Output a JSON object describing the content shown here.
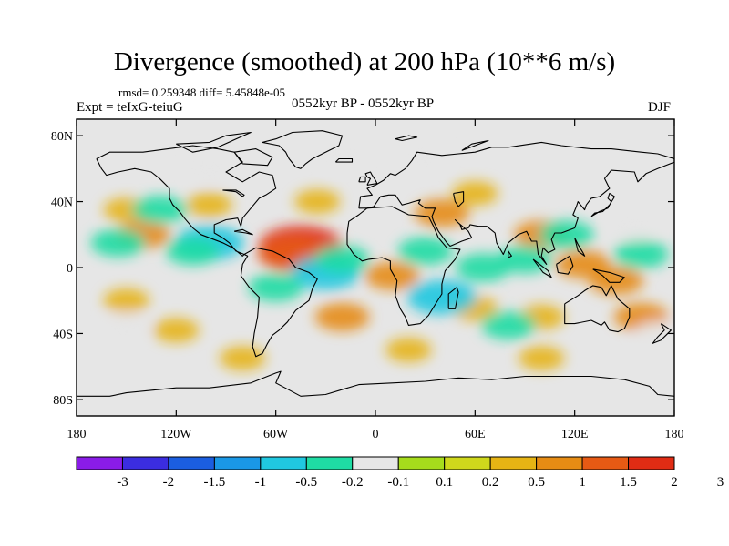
{
  "title": "Divergence (smoothed) at 200 hPa (10**6 m/s)",
  "stats": "rmsd= 0.259348 diff= 5.45848e-05",
  "experiment": "Expt = teIxG-teiuG",
  "period": "0552kyr BP - 0552kyr BP",
  "season": "DJF",
  "axes": {
    "lat_ticks": [
      {
        "value": 80,
        "label": "80N"
      },
      {
        "value": 40,
        "label": "40N"
      },
      {
        "value": 0,
        "label": "0"
      },
      {
        "value": -40,
        "label": "40S"
      },
      {
        "value": -80,
        "label": "80S"
      }
    ],
    "lon_ticks": [
      {
        "value": -180,
        "label": "180"
      },
      {
        "value": -120,
        "label": "120W"
      },
      {
        "value": -60,
        "label": "60W"
      },
      {
        "value": 0,
        "label": "0"
      },
      {
        "value": 60,
        "label": "60E"
      },
      {
        "value": 120,
        "label": "120E"
      },
      {
        "value": 180,
        "label": "180"
      }
    ]
  },
  "colorbar": {
    "colors": [
      "#8a1ce8",
      "#3b2de0",
      "#1b5ee0",
      "#1a98e6",
      "#20c8e0",
      "#1fdca4",
      "#e6e6e6",
      "#a6dc1c",
      "#cfd81c",
      "#e6b414",
      "#e68c14",
      "#e65a14",
      "#e02c14"
    ],
    "labels": [
      "-3",
      "-2",
      "-1.5",
      "-1",
      "-0.5",
      "-0.2",
      "-0.1",
      "0.1",
      "0.2",
      "0.5",
      "1",
      "1.5",
      "2",
      "3"
    ]
  },
  "chart_data": {
    "type": "heatmap",
    "variable": "Divergence (smoothed) at 200 hPa",
    "units": "10**6 m/s",
    "levels": [
      -3,
      -2,
      -1.5,
      -1,
      -0.5,
      -0.2,
      -0.1,
      0.1,
      0.2,
      0.5,
      1,
      1.5,
      2,
      3
    ],
    "lon_range": [
      -180,
      180
    ],
    "lat_range": [
      -90,
      90
    ],
    "anomalies": [
      {
        "lon": -45,
        "lat": 13,
        "value": 1.5
      },
      {
        "lon": -50,
        "lat": 8,
        "value": 1
      },
      {
        "lon": -140,
        "lat": 20,
        "value": 0.5
      },
      {
        "lon": -150,
        "lat": 35,
        "value": 0.2
      },
      {
        "lon": -100,
        "lat": 38,
        "value": 0.2
      },
      {
        "lon": -35,
        "lat": 40,
        "value": 0.2
      },
      {
        "lon": 40,
        "lat": 33,
        "value": 0.5
      },
      {
        "lon": 60,
        "lat": 45,
        "value": 0.2
      },
      {
        "lon": 100,
        "lat": 20,
        "value": 0.5
      },
      {
        "lon": 125,
        "lat": 2,
        "value": 0.5
      },
      {
        "lon": 145,
        "lat": -8,
        "value": 0.5
      },
      {
        "lon": 10,
        "lat": -5,
        "value": 0.5
      },
      {
        "lon": -150,
        "lat": -20,
        "value": 0.2
      },
      {
        "lon": -120,
        "lat": -38,
        "value": 0.2
      },
      {
        "lon": -20,
        "lat": -30,
        "value": 0.5
      },
      {
        "lon": 60,
        "lat": -25,
        "value": 0.2
      },
      {
        "lon": 100,
        "lat": -30,
        "value": 0.2
      },
      {
        "lon": 160,
        "lat": -30,
        "value": 0.5
      },
      {
        "lon": -80,
        "lat": -55,
        "value": 0.2
      },
      {
        "lon": 20,
        "lat": -50,
        "value": 0.2
      },
      {
        "lon": 100,
        "lat": -55,
        "value": 0.2
      },
      {
        "lon": -130,
        "lat": 35,
        "value": -0.5
      },
      {
        "lon": -155,
        "lat": 15,
        "value": -0.5
      },
      {
        "lon": -100,
        "lat": 15,
        "value": -1
      },
      {
        "lon": -110,
        "lat": 10,
        "value": -0.5
      },
      {
        "lon": -30,
        "lat": -3,
        "value": -1
      },
      {
        "lon": -20,
        "lat": 5,
        "value": -0.5
      },
      {
        "lon": -60,
        "lat": -12,
        "value": -0.5
      },
      {
        "lon": 30,
        "lat": 10,
        "value": -0.5
      },
      {
        "lon": 65,
        "lat": 0,
        "value": -0.5
      },
      {
        "lon": 40,
        "lat": -18,
        "value": -1
      },
      {
        "lon": 90,
        "lat": 5,
        "value": -0.5
      },
      {
        "lon": 115,
        "lat": 20,
        "value": -0.5
      },
      {
        "lon": 160,
        "lat": 8,
        "value": -0.5
      },
      {
        "lon": 155,
        "lat": 25,
        "value": -0.2
      },
      {
        "lon": -150,
        "lat": -35,
        "value": -0.2
      },
      {
        "lon": 80,
        "lat": -35,
        "value": -0.5
      },
      {
        "lon": 170,
        "lat": -40,
        "value": -0.2
      },
      {
        "lon": 30,
        "lat": 68,
        "value": -0.2
      },
      {
        "lon": -20,
        "lat": 68,
        "value": -0.2
      },
      {
        "lon": -100,
        "lat": 60,
        "value": -0.2
      }
    ]
  }
}
